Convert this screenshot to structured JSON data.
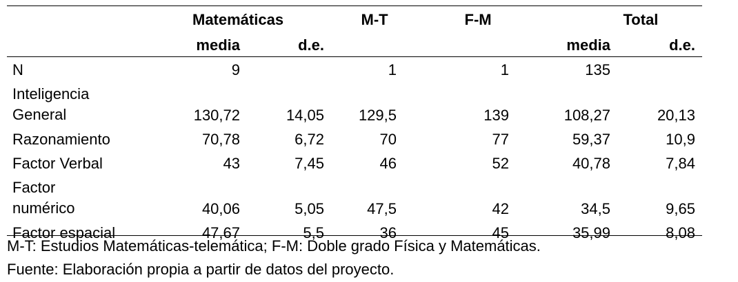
{
  "table": {
    "header": {
      "groups": [
        "Matemáticas",
        "M-T",
        "F-M",
        "Total"
      ],
      "sub": [
        "media",
        "d.e.",
        "media",
        "d.e."
      ]
    },
    "rows": [
      {
        "label": "N",
        "values": [
          9,
          null,
          1,
          1,
          135,
          null
        ]
      },
      {
        "label": "Inteligencia\nGeneral",
        "values": [
          "130,72",
          "14,05",
          "129,5",
          139,
          "108,27",
          "20,13"
        ]
      },
      {
        "label": "Razonamiento",
        "values": [
          "70,78",
          "6,72",
          70,
          77,
          "59,37",
          "10,9"
        ]
      },
      {
        "label": "Factor Verbal",
        "values": [
          43,
          "7,45",
          46,
          52,
          "40,78",
          "7,84"
        ]
      },
      {
        "label": "Factor\nnumérico",
        "values": [
          "40,06",
          "5,05",
          "47,5",
          42,
          "34,5",
          "9,65"
        ]
      },
      {
        "label": "Factor espacial",
        "values": [
          "47,67",
          "5,5",
          36,
          45,
          "35,99",
          "8,08"
        ]
      }
    ],
    "notes": [
      "M-T: Estudios Matemáticas-telemática; F-M: Doble grado Física y Matemáticas.",
      "Fuente: Elaboración propia a partir de datos del proyecto."
    ]
  }
}
